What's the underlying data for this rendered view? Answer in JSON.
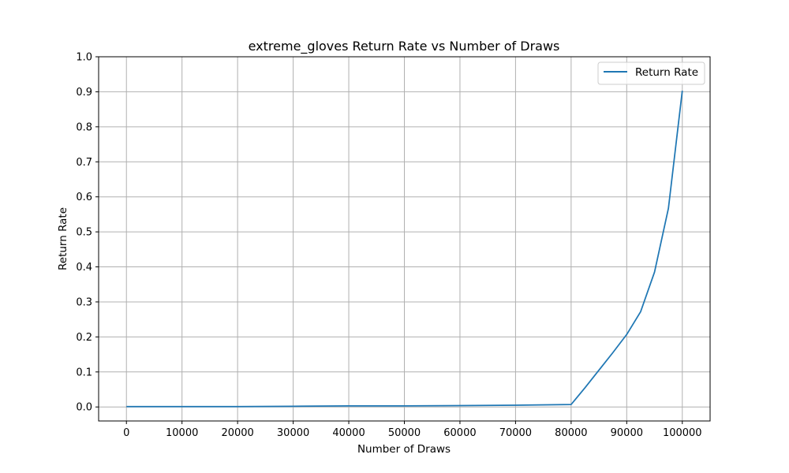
{
  "chart_data": {
    "type": "line",
    "title": "extreme_gloves Return Rate vs Number of Draws",
    "xlabel": "Number of Draws",
    "ylabel": "Return Rate",
    "xlim": [
      -5000,
      105000
    ],
    "ylim": [
      -0.04,
      1.0
    ],
    "xticks": [
      0,
      10000,
      20000,
      30000,
      40000,
      50000,
      60000,
      70000,
      80000,
      90000,
      100000
    ],
    "xtick_labels": [
      "0",
      "10000",
      "20000",
      "30000",
      "40000",
      "50000",
      "60000",
      "70000",
      "80000",
      "90000",
      "100000"
    ],
    "yticks": [
      0.0,
      0.1,
      0.2,
      0.3,
      0.4,
      0.5,
      0.6,
      0.7,
      0.8,
      0.9,
      1.0
    ],
    "ytick_labels": [
      "0.0",
      "0.1",
      "0.2",
      "0.3",
      "0.4",
      "0.5",
      "0.6",
      "0.7",
      "0.8",
      "0.9",
      "1.0"
    ],
    "grid": true,
    "legend_position": "top-right",
    "series": [
      {
        "name": "Return Rate",
        "color": "#1f77b4",
        "x": [
          0,
          10000,
          20000,
          30000,
          40000,
          50000,
          60000,
          70000,
          80000,
          82500,
          85000,
          87500,
          90000,
          92500,
          95000,
          97500,
          100000
        ],
        "y": [
          0.001,
          0.001,
          0.001,
          0.002,
          0.003,
          0.003,
          0.004,
          0.005,
          0.007,
          0.055,
          0.105,
          0.155,
          0.207,
          0.272,
          0.385,
          0.567,
          0.903
        ]
      }
    ]
  }
}
